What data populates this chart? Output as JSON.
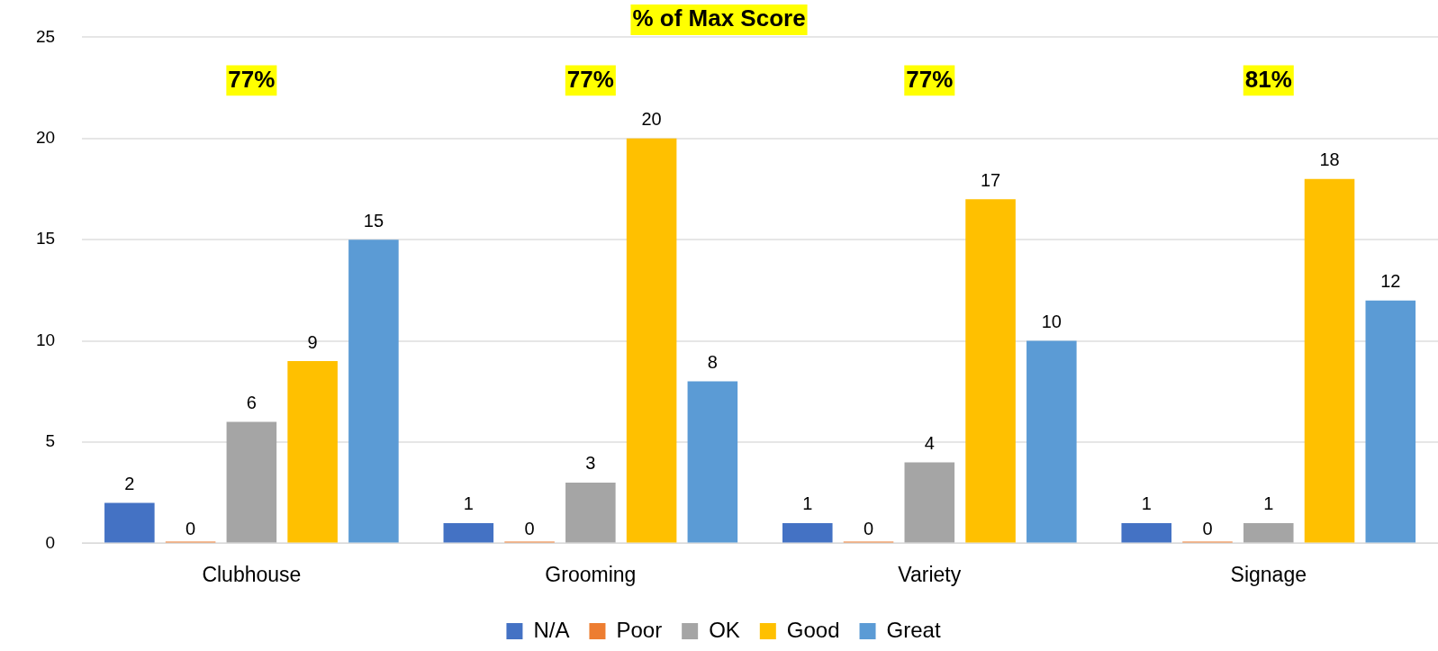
{
  "chart_data": {
    "type": "bar",
    "title": "% of Max Score",
    "categories": [
      "Clubhouse",
      "Grooming",
      "Variety",
      "Signage"
    ],
    "series": [
      {
        "name": "N/A",
        "color": "#4472c4",
        "values": [
          2,
          1,
          1,
          1
        ]
      },
      {
        "name": "Poor",
        "color": "#ed7d31",
        "values": [
          0,
          0,
          0,
          0
        ]
      },
      {
        "name": "OK",
        "color": "#a5a5a5",
        "values": [
          6,
          3,
          4,
          1
        ]
      },
      {
        "name": "Good",
        "color": "#ffc000",
        "values": [
          9,
          20,
          17,
          18
        ]
      },
      {
        "name": "Great",
        "color": "#5b9bd5",
        "values": [
          15,
          8,
          10,
          12
        ]
      }
    ],
    "ylim": [
      0,
      25
    ],
    "yticks": [
      0,
      5,
      10,
      15,
      20,
      25
    ],
    "grid": "y",
    "legend": "bottom",
    "data_labels": true,
    "annotations": [
      "77%",
      "77%",
      "77%",
      "81%"
    ]
  }
}
